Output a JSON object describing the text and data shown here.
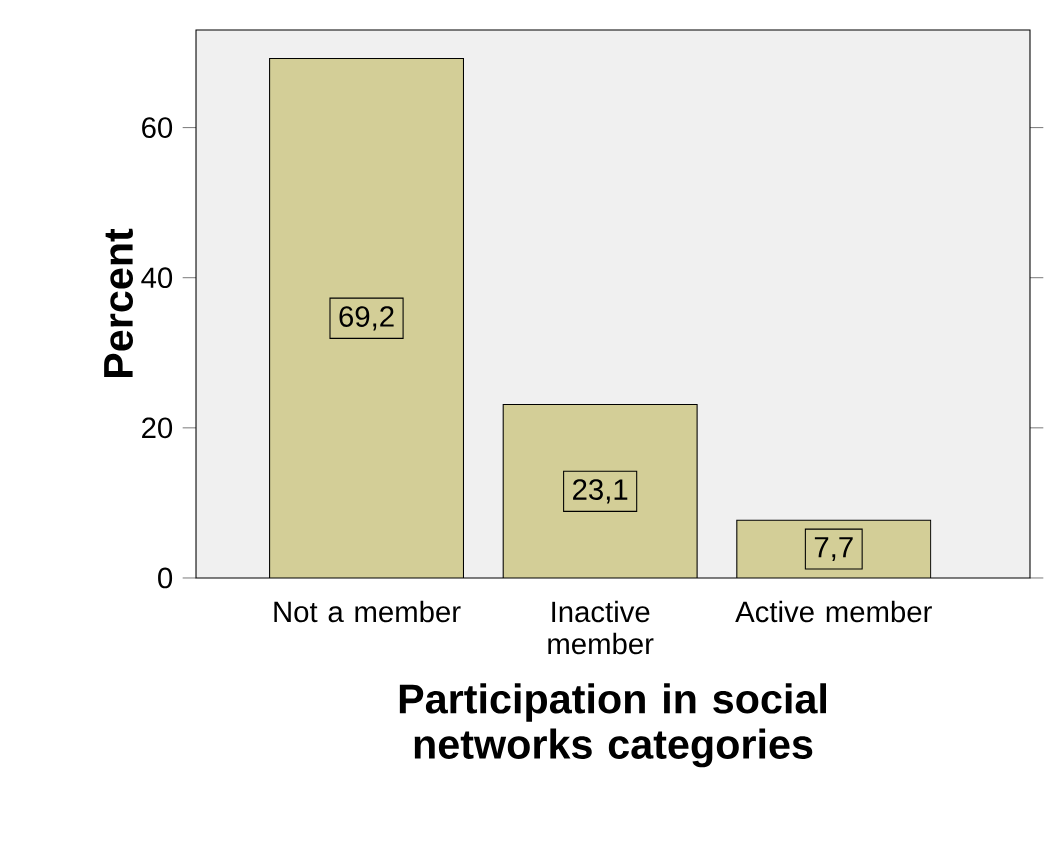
{
  "chart_data": {
    "type": "bar",
    "xlabel": "Participation in social networks categories",
    "ylabel": "Percent",
    "categories": [
      "Not a member",
      "Inactive member",
      "Active member"
    ],
    "values": [
      69.2,
      23.1,
      7.7
    ],
    "value_labels": [
      "69,2",
      "23,1",
      "7,7"
    ],
    "color": "#d3ce97",
    "ylim": [
      0,
      73
    ],
    "yticks": [
      0,
      20,
      40,
      60
    ],
    "grid": false
  }
}
